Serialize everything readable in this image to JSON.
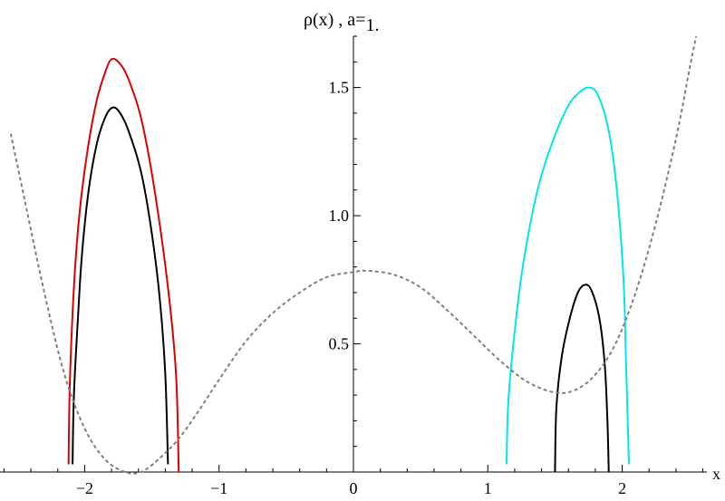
{
  "chart_data": {
    "type": "line",
    "title": {
      "prefix": "ρ(x) , a=",
      "value": "1."
    },
    "xlabel": "x",
    "ylabel": "",
    "xlim": [
      -2.63,
      2.63
    ],
    "ylim": [
      0,
      1.7
    ],
    "x_ticks": [
      {
        "value": -2,
        "label": "−2"
      },
      {
        "value": -1,
        "label": "−1"
      },
      {
        "value": 0,
        "label": "0"
      },
      {
        "value": 1,
        "label": "1"
      },
      {
        "value": 2,
        "label": "2"
      }
    ],
    "y_ticks": [
      {
        "value": 0.5,
        "label": "0.5"
      },
      {
        "value": 1.0,
        "label": "1.0"
      },
      {
        "value": 1.5,
        "label": "1.5"
      }
    ],
    "grid": false,
    "series": [
      {
        "color": "#dd0000",
        "style": "solid",
        "points": [
          [
            -2.12,
            0.03
          ],
          [
            -2.11,
            0.35
          ],
          [
            -2.08,
            0.72
          ],
          [
            -2.04,
            1.0
          ],
          [
            -1.98,
            1.25
          ],
          [
            -1.91,
            1.45
          ],
          [
            -1.84,
            1.57
          ],
          [
            -1.8,
            1.61
          ],
          [
            -1.75,
            1.6
          ],
          [
            -1.68,
            1.54
          ],
          [
            -1.58,
            1.38
          ],
          [
            -1.48,
            1.1
          ],
          [
            -1.38,
            0.72
          ],
          [
            -1.32,
            0.38
          ],
          [
            -1.3,
            0.0
          ]
        ]
      },
      {
        "color": "#000000",
        "style": "solid",
        "points": [
          [
            -2.09,
            0.03
          ],
          [
            -2.08,
            0.3
          ],
          [
            -2.05,
            0.6
          ],
          [
            -2.02,
            0.85
          ],
          [
            -1.97,
            1.1
          ],
          [
            -1.91,
            1.28
          ],
          [
            -1.85,
            1.38
          ],
          [
            -1.8,
            1.42
          ],
          [
            -1.75,
            1.41
          ],
          [
            -1.68,
            1.34
          ],
          [
            -1.58,
            1.17
          ],
          [
            -1.5,
            0.93
          ],
          [
            -1.44,
            0.67
          ],
          [
            -1.4,
            0.38
          ],
          [
            -1.38,
            0.03
          ]
        ]
      },
      {
        "color": "#00e5ee",
        "style": "solid",
        "points": [
          [
            1.14,
            0.03
          ],
          [
            1.15,
            0.25
          ],
          [
            1.19,
            0.5
          ],
          [
            1.26,
            0.8
          ],
          [
            1.37,
            1.1
          ],
          [
            1.49,
            1.3
          ],
          [
            1.6,
            1.43
          ],
          [
            1.68,
            1.48
          ],
          [
            1.75,
            1.5
          ],
          [
            1.82,
            1.47
          ],
          [
            1.9,
            1.33
          ],
          [
            1.96,
            1.1
          ],
          [
            2.01,
            0.75
          ],
          [
            2.03,
            0.4
          ],
          [
            2.05,
            0.03
          ]
        ]
      },
      {
        "color": "#000000",
        "style": "solid",
        "points": [
          [
            1.5,
            0.0
          ],
          [
            1.51,
            0.25
          ],
          [
            1.55,
            0.45
          ],
          [
            1.61,
            0.6
          ],
          [
            1.67,
            0.7
          ],
          [
            1.72,
            0.73
          ],
          [
            1.77,
            0.71
          ],
          [
            1.83,
            0.6
          ],
          [
            1.87,
            0.42
          ],
          [
            1.89,
            0.2
          ],
          [
            1.9,
            0.0
          ]
        ]
      },
      {
        "color": "#808080",
        "style": "dashed",
        "points": [
          [
            -2.55,
            1.32
          ],
          [
            -2.45,
            1.07
          ],
          [
            -2.3,
            0.7
          ],
          [
            -2.15,
            0.38
          ],
          [
            -2.0,
            0.17
          ],
          [
            -1.85,
            0.05
          ],
          [
            -1.7,
            0.0
          ],
          [
            -1.58,
            0.0
          ],
          [
            -1.45,
            0.05
          ],
          [
            -1.3,
            0.13
          ],
          [
            -1.15,
            0.24
          ],
          [
            -1.0,
            0.36
          ],
          [
            -0.8,
            0.51
          ],
          [
            -0.6,
            0.62
          ],
          [
            -0.4,
            0.7
          ],
          [
            -0.2,
            0.76
          ],
          [
            0.0,
            0.78
          ],
          [
            0.1,
            0.785
          ],
          [
            0.3,
            0.77
          ],
          [
            0.5,
            0.72
          ],
          [
            0.7,
            0.63
          ],
          [
            0.9,
            0.53
          ],
          [
            1.1,
            0.43
          ],
          [
            1.3,
            0.35
          ],
          [
            1.5,
            0.31
          ],
          [
            1.65,
            0.32
          ],
          [
            1.8,
            0.38
          ],
          [
            1.95,
            0.5
          ],
          [
            2.1,
            0.7
          ],
          [
            2.25,
            0.97
          ],
          [
            2.4,
            1.3
          ],
          [
            2.5,
            1.57
          ],
          [
            2.55,
            1.7
          ]
        ]
      }
    ]
  }
}
